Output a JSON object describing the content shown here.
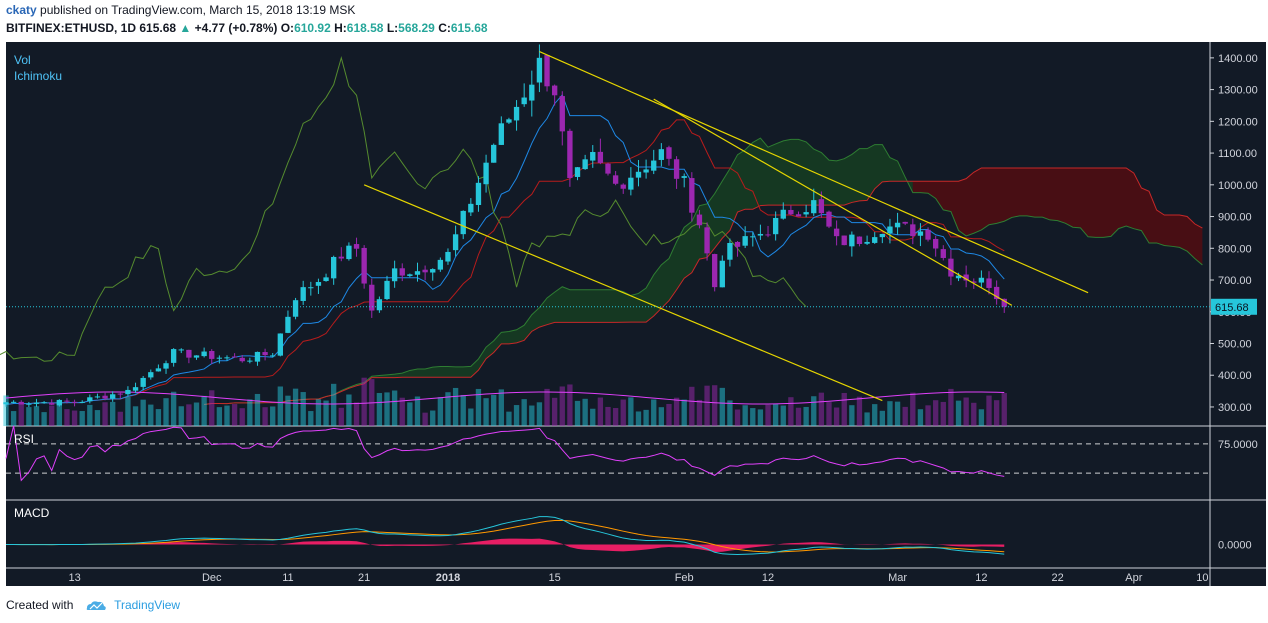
{
  "header": {
    "author": "ckaty",
    "published": "published on TradingView.com, March 15, 2018 13:19 MSK",
    "symbol": "BITFINEX:ETHUSD, 1D",
    "last": "615.68",
    "change": "+4.77 (+0.78%)",
    "o_label": "O:",
    "o": "610.92",
    "h_label": "H:",
    "h": "618.58",
    "l_label": "L:",
    "l": "568.29",
    "c_label": "C:",
    "c": "615.68"
  },
  "footer": {
    "created_with": "Created with",
    "brand": "TradingView"
  },
  "colors": {
    "up": "#26c6da",
    "down": "#9c27b0",
    "rsi": "#e040fb",
    "macd": "#26c6da",
    "signal": "#ff9800",
    "hist": "#ff1f6b",
    "trend": "#e6d600",
    "cloud_up": "#1b5e20",
    "cloud_down": "#8b0000",
    "pane_bg": "#121a26"
  },
  "chart_data": {
    "type": "candlestick",
    "indicators": [
      "Vol",
      "Ichimoku"
    ],
    "price_axis_ticks": [
      "1400.00",
      "1300.00",
      "1200.00",
      "1100.00",
      "1000.00",
      "900.00",
      "800.00",
      "700.00",
      "600.00",
      "500.00",
      "400.00",
      "300.00"
    ],
    "price_axis_range": [
      240,
      1450
    ],
    "last_price_label": "615.68",
    "rsi": {
      "label": "RSI",
      "level_labels": [
        "75.0000"
      ],
      "levels": [
        70,
        30
      ]
    },
    "macd": {
      "label": "MACD",
      "zero_label": "0.0000"
    },
    "x_ticks": [
      "13",
      "Dec",
      "11",
      "21",
      "2018",
      "15",
      "Feb",
      "12",
      "Mar",
      "12",
      "22",
      "Apr",
      "10"
    ],
    "x_tick_dates": [
      "2017-11-13",
      "2017-12-01",
      "2017-12-11",
      "2017-12-21",
      "2018-01-01",
      "2018-01-15",
      "2018-02-01",
      "2018-02-12",
      "2018-03-01",
      "2018-03-12",
      "2018-03-22",
      "2018-04-01",
      "2018-04-10"
    ],
    "anchors": [
      [
        "2017-11-13",
        315
      ],
      [
        "2017-11-20",
        350
      ],
      [
        "2017-11-26",
        470
      ],
      [
        "2017-12-01",
        460
      ],
      [
        "2017-12-05",
        450
      ],
      [
        "2017-12-09",
        470
      ],
      [
        "2017-12-12",
        650
      ],
      [
        "2017-12-15",
        700
      ],
      [
        "2017-12-18",
        780
      ],
      [
        "2017-12-20",
        800
      ],
      [
        "2017-12-22",
        600
      ],
      [
        "2017-12-25",
        730
      ],
      [
        "2017-12-28",
        730
      ],
      [
        "2018-01-01",
        780
      ],
      [
        "2018-01-04",
        950
      ],
      [
        "2018-01-07",
        1130
      ],
      [
        "2018-01-10",
        1250
      ],
      [
        "2018-01-13",
        1380
      ],
      [
        "2018-01-15",
        1300
      ],
      [
        "2018-01-17",
        1000
      ],
      [
        "2018-01-20",
        1080
      ],
      [
        "2018-01-23",
        1000
      ],
      [
        "2018-01-26",
        1050
      ],
      [
        "2018-01-29",
        1100
      ],
      [
        "2018-02-01",
        1000
      ],
      [
        "2018-02-03",
        880
      ],
      [
        "2018-02-05",
        680
      ],
      [
        "2018-02-06",
        780
      ],
      [
        "2018-02-09",
        820
      ],
      [
        "2018-02-12",
        860
      ],
      [
        "2018-02-15",
        920
      ],
      [
        "2018-02-18",
        940
      ],
      [
        "2018-02-21",
        820
      ],
      [
        "2018-02-24",
        830
      ],
      [
        "2018-02-27",
        870
      ],
      [
        "2018-03-02",
        860
      ],
      [
        "2018-03-05",
        850
      ],
      [
        "2018-03-08",
        730
      ],
      [
        "2018-03-11",
        700
      ],
      [
        "2018-03-13",
        690
      ],
      [
        "2018-03-15",
        616
      ]
    ],
    "trendlines": [
      {
        "from": [
          "2018-01-13",
          1420
        ],
        "to": [
          "2018-03-26",
          660
        ]
      },
      {
        "from": [
          "2018-01-28",
          1270
        ],
        "to": [
          "2018-03-16",
          620
        ]
      },
      {
        "from": [
          "2017-12-21",
          1000
        ],
        "to": [
          "2018-02-27",
          320
        ]
      }
    ]
  }
}
